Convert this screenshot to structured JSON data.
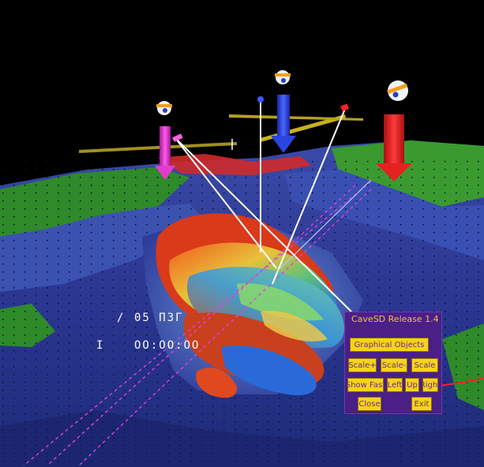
{
  "hud": {
    "line1_label": "/",
    "line1_value": "05 ПЗГ",
    "line2_label": "I",
    "line2_value": "ОО:ОО:ОО"
  },
  "menu": {
    "title": "CaveSD Release 1.4",
    "graphical_objects": "Graphical Objects",
    "scale_1": "Scale+",
    "scale_2": "Scale-",
    "scale_3": "Scale",
    "show_fast": "Show Fast",
    "tool_1": "Left",
    "tool_2": "Up",
    "tool_3": "Right",
    "close": "Close",
    "exit": "Exit"
  },
  "colors": {
    "background": "#000000",
    "menu_panel": "#4a1f86",
    "menu_button": "#f6d417",
    "button_text": "#6a2a8a",
    "marker_magenta": "#e43ad0",
    "marker_blue": "#2a44e0",
    "marker_red": "#e42222"
  }
}
